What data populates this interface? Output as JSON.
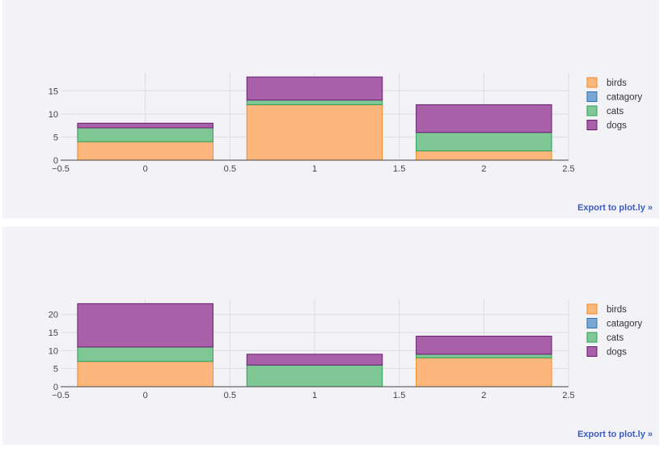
{
  "export_label": "Export to plot.ly »",
  "colors": {
    "birds": "#fdb77c",
    "catagory": "#7ba7d4",
    "cats": "#7fc896",
    "dogs": "#a861a8",
    "birds_line": "#f28a26",
    "catagory_line": "#2f6fb3",
    "cats_line": "#2ca05a",
    "dogs_line": "#6a1d6f",
    "background": "#f3f2f7",
    "grid": "#dcdce4"
  },
  "chart_data": [
    {
      "type": "bar",
      "barmode": "stack",
      "categories": [
        0,
        1,
        2
      ],
      "series": [
        {
          "name": "birds",
          "values": [
            4,
            12,
            2
          ]
        },
        {
          "name": "catagory",
          "values": [
            0,
            0,
            0
          ]
        },
        {
          "name": "cats",
          "values": [
            3,
            1,
            4
          ]
        },
        {
          "name": "dogs",
          "values": [
            1,
            5,
            6
          ]
        }
      ],
      "xlim": [
        -0.5,
        2.5
      ],
      "ylim": [
        0,
        18.9
      ],
      "xticks": [
        "−0.5",
        "0",
        "0.5",
        "1",
        "1.5",
        "2",
        "2.5"
      ],
      "xtick_values": [
        -0.5,
        0,
        0.5,
        1,
        1.5,
        2,
        2.5
      ],
      "yticks": [
        "0",
        "5",
        "10",
        "15"
      ],
      "ytick_values": [
        0,
        5,
        10,
        15
      ],
      "grid": true,
      "legend_position": "right"
    },
    {
      "type": "bar",
      "barmode": "stack",
      "categories": [
        0,
        1,
        2
      ],
      "series": [
        {
          "name": "birds",
          "values": [
            7,
            0,
            8
          ]
        },
        {
          "name": "catagory",
          "values": [
            0,
            0,
            0
          ]
        },
        {
          "name": "cats",
          "values": [
            4,
            6,
            1
          ]
        },
        {
          "name": "dogs",
          "values": [
            12,
            3,
            5
          ]
        }
      ],
      "xlim": [
        -0.5,
        2.5
      ],
      "ylim": [
        0,
        24.2
      ],
      "xticks": [
        "−0.5",
        "0",
        "0.5",
        "1",
        "1.5",
        "2",
        "2.5"
      ],
      "xtick_values": [
        -0.5,
        0,
        0.5,
        1,
        1.5,
        2,
        2.5
      ],
      "yticks": [
        "0",
        "5",
        "10",
        "15",
        "20"
      ],
      "ytick_values": [
        0,
        5,
        10,
        15,
        20
      ],
      "grid": true,
      "legend_position": "right"
    }
  ]
}
